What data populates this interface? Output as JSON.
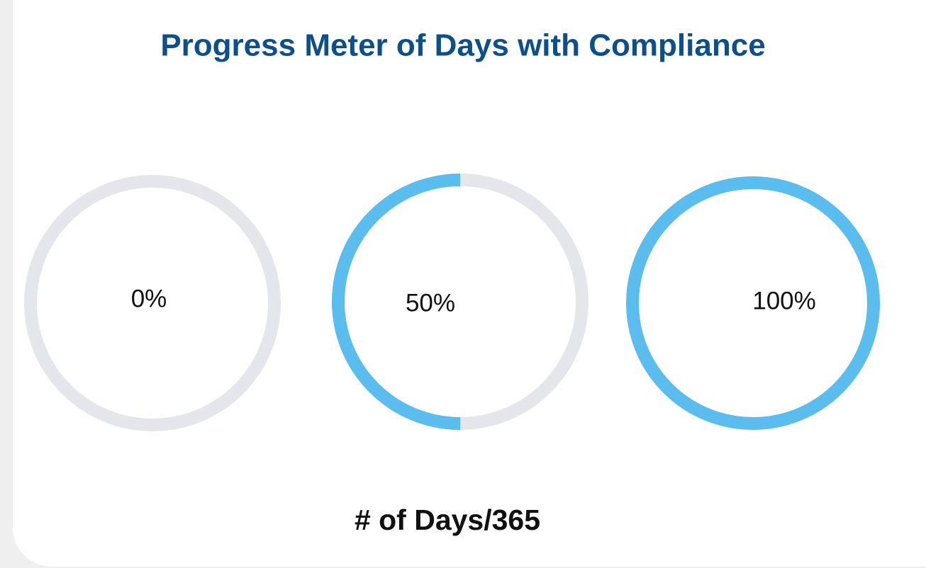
{
  "chart_data": {
    "type": "ring",
    "title": "Progress Meter of Days with Compliance",
    "xlabel": "# of Days/365",
    "values": [
      0,
      50,
      100
    ],
    "value_labels": [
      "0%",
      "50%",
      "100%"
    ],
    "ylim": [
      0,
      100
    ],
    "color": "#5bbdee",
    "track_color": "#e5e6eb"
  }
}
